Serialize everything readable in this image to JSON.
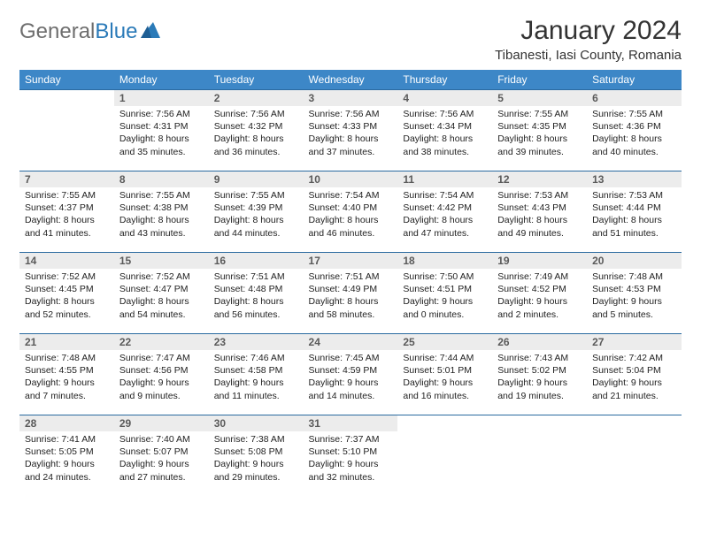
{
  "logo": {
    "word1": "General",
    "word2": "Blue"
  },
  "title": {
    "month": "January 2024",
    "location": "Tibanesti, Iasi County, Romania"
  },
  "colors": {
    "header_bg": "#3d87c7",
    "header_text": "#ffffff",
    "row_divider": "#2a6aa0",
    "daynum_bg": "#ececec",
    "daynum_text": "#5a5a5a",
    "body_text": "#222222",
    "logo_gray": "#6e6e6e",
    "logo_blue": "#2a7ab8"
  },
  "day_names": [
    "Sunday",
    "Monday",
    "Tuesday",
    "Wednesday",
    "Thursday",
    "Friday",
    "Saturday"
  ],
  "weeks": [
    [
      null,
      {
        "n": "1",
        "sunrise": "Sunrise: 7:56 AM",
        "sunset": "Sunset: 4:31 PM",
        "d1": "Daylight: 8 hours",
        "d2": "and 35 minutes."
      },
      {
        "n": "2",
        "sunrise": "Sunrise: 7:56 AM",
        "sunset": "Sunset: 4:32 PM",
        "d1": "Daylight: 8 hours",
        "d2": "and 36 minutes."
      },
      {
        "n": "3",
        "sunrise": "Sunrise: 7:56 AM",
        "sunset": "Sunset: 4:33 PM",
        "d1": "Daylight: 8 hours",
        "d2": "and 37 minutes."
      },
      {
        "n": "4",
        "sunrise": "Sunrise: 7:56 AM",
        "sunset": "Sunset: 4:34 PM",
        "d1": "Daylight: 8 hours",
        "d2": "and 38 minutes."
      },
      {
        "n": "5",
        "sunrise": "Sunrise: 7:55 AM",
        "sunset": "Sunset: 4:35 PM",
        "d1": "Daylight: 8 hours",
        "d2": "and 39 minutes."
      },
      {
        "n": "6",
        "sunrise": "Sunrise: 7:55 AM",
        "sunset": "Sunset: 4:36 PM",
        "d1": "Daylight: 8 hours",
        "d2": "and 40 minutes."
      }
    ],
    [
      {
        "n": "7",
        "sunrise": "Sunrise: 7:55 AM",
        "sunset": "Sunset: 4:37 PM",
        "d1": "Daylight: 8 hours",
        "d2": "and 41 minutes."
      },
      {
        "n": "8",
        "sunrise": "Sunrise: 7:55 AM",
        "sunset": "Sunset: 4:38 PM",
        "d1": "Daylight: 8 hours",
        "d2": "and 43 minutes."
      },
      {
        "n": "9",
        "sunrise": "Sunrise: 7:55 AM",
        "sunset": "Sunset: 4:39 PM",
        "d1": "Daylight: 8 hours",
        "d2": "and 44 minutes."
      },
      {
        "n": "10",
        "sunrise": "Sunrise: 7:54 AM",
        "sunset": "Sunset: 4:40 PM",
        "d1": "Daylight: 8 hours",
        "d2": "and 46 minutes."
      },
      {
        "n": "11",
        "sunrise": "Sunrise: 7:54 AM",
        "sunset": "Sunset: 4:42 PM",
        "d1": "Daylight: 8 hours",
        "d2": "and 47 minutes."
      },
      {
        "n": "12",
        "sunrise": "Sunrise: 7:53 AM",
        "sunset": "Sunset: 4:43 PM",
        "d1": "Daylight: 8 hours",
        "d2": "and 49 minutes."
      },
      {
        "n": "13",
        "sunrise": "Sunrise: 7:53 AM",
        "sunset": "Sunset: 4:44 PM",
        "d1": "Daylight: 8 hours",
        "d2": "and 51 minutes."
      }
    ],
    [
      {
        "n": "14",
        "sunrise": "Sunrise: 7:52 AM",
        "sunset": "Sunset: 4:45 PM",
        "d1": "Daylight: 8 hours",
        "d2": "and 52 minutes."
      },
      {
        "n": "15",
        "sunrise": "Sunrise: 7:52 AM",
        "sunset": "Sunset: 4:47 PM",
        "d1": "Daylight: 8 hours",
        "d2": "and 54 minutes."
      },
      {
        "n": "16",
        "sunrise": "Sunrise: 7:51 AM",
        "sunset": "Sunset: 4:48 PM",
        "d1": "Daylight: 8 hours",
        "d2": "and 56 minutes."
      },
      {
        "n": "17",
        "sunrise": "Sunrise: 7:51 AM",
        "sunset": "Sunset: 4:49 PM",
        "d1": "Daylight: 8 hours",
        "d2": "and 58 minutes."
      },
      {
        "n": "18",
        "sunrise": "Sunrise: 7:50 AM",
        "sunset": "Sunset: 4:51 PM",
        "d1": "Daylight: 9 hours",
        "d2": "and 0 minutes."
      },
      {
        "n": "19",
        "sunrise": "Sunrise: 7:49 AM",
        "sunset": "Sunset: 4:52 PM",
        "d1": "Daylight: 9 hours",
        "d2": "and 2 minutes."
      },
      {
        "n": "20",
        "sunrise": "Sunrise: 7:48 AM",
        "sunset": "Sunset: 4:53 PM",
        "d1": "Daylight: 9 hours",
        "d2": "and 5 minutes."
      }
    ],
    [
      {
        "n": "21",
        "sunrise": "Sunrise: 7:48 AM",
        "sunset": "Sunset: 4:55 PM",
        "d1": "Daylight: 9 hours",
        "d2": "and 7 minutes."
      },
      {
        "n": "22",
        "sunrise": "Sunrise: 7:47 AM",
        "sunset": "Sunset: 4:56 PM",
        "d1": "Daylight: 9 hours",
        "d2": "and 9 minutes."
      },
      {
        "n": "23",
        "sunrise": "Sunrise: 7:46 AM",
        "sunset": "Sunset: 4:58 PM",
        "d1": "Daylight: 9 hours",
        "d2": "and 11 minutes."
      },
      {
        "n": "24",
        "sunrise": "Sunrise: 7:45 AM",
        "sunset": "Sunset: 4:59 PM",
        "d1": "Daylight: 9 hours",
        "d2": "and 14 minutes."
      },
      {
        "n": "25",
        "sunrise": "Sunrise: 7:44 AM",
        "sunset": "Sunset: 5:01 PM",
        "d1": "Daylight: 9 hours",
        "d2": "and 16 minutes."
      },
      {
        "n": "26",
        "sunrise": "Sunrise: 7:43 AM",
        "sunset": "Sunset: 5:02 PM",
        "d1": "Daylight: 9 hours",
        "d2": "and 19 minutes."
      },
      {
        "n": "27",
        "sunrise": "Sunrise: 7:42 AM",
        "sunset": "Sunset: 5:04 PM",
        "d1": "Daylight: 9 hours",
        "d2": "and 21 minutes."
      }
    ],
    [
      {
        "n": "28",
        "sunrise": "Sunrise: 7:41 AM",
        "sunset": "Sunset: 5:05 PM",
        "d1": "Daylight: 9 hours",
        "d2": "and 24 minutes."
      },
      {
        "n": "29",
        "sunrise": "Sunrise: 7:40 AM",
        "sunset": "Sunset: 5:07 PM",
        "d1": "Daylight: 9 hours",
        "d2": "and 27 minutes."
      },
      {
        "n": "30",
        "sunrise": "Sunrise: 7:38 AM",
        "sunset": "Sunset: 5:08 PM",
        "d1": "Daylight: 9 hours",
        "d2": "and 29 minutes."
      },
      {
        "n": "31",
        "sunrise": "Sunrise: 7:37 AM",
        "sunset": "Sunset: 5:10 PM",
        "d1": "Daylight: 9 hours",
        "d2": "and 32 minutes."
      },
      null,
      null,
      null
    ]
  ]
}
